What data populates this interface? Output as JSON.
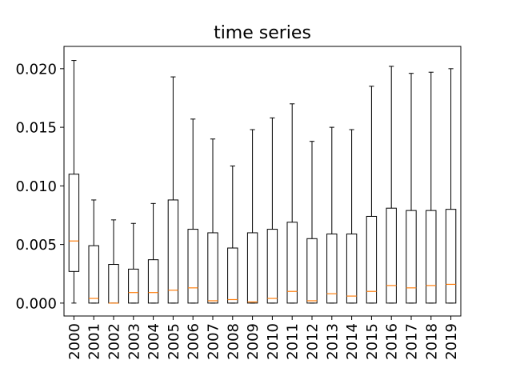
{
  "chart_data": {
    "type": "boxplot",
    "title": "time series",
    "xlabel": "",
    "ylabel": "",
    "ylim": [
      -0.0011,
      0.0219
    ],
    "yticks": [
      0.0,
      0.005,
      0.01,
      0.015,
      0.02
    ],
    "ytick_labels": [
      "0.000",
      "0.005",
      "0.010",
      "0.015",
      "0.020"
    ],
    "grid": false,
    "categories": [
      "2000",
      "2001",
      "2002",
      "2003",
      "2004",
      "2005",
      "2006",
      "2007",
      "2008",
      "2009",
      "2010",
      "2011",
      "2012",
      "2013",
      "2014",
      "2015",
      "2016",
      "2017",
      "2018",
      "2019"
    ],
    "boxes": [
      {
        "whislo": 0.0,
        "q1": 0.0027,
        "med": 0.0053,
        "q3": 0.011,
        "whishi": 0.0207
      },
      {
        "whislo": 0.0,
        "q1": 0.0,
        "med": 0.0004,
        "q3": 0.0049,
        "whishi": 0.0088
      },
      {
        "whislo": 0.0,
        "q1": 0.0,
        "med": 0.0,
        "q3": 0.0033,
        "whishi": 0.0071
      },
      {
        "whislo": 0.0,
        "q1": 0.0,
        "med": 0.0009,
        "q3": 0.0029,
        "whishi": 0.0068
      },
      {
        "whislo": 0.0,
        "q1": 0.0,
        "med": 0.0009,
        "q3": 0.0037,
        "whishi": 0.0085
      },
      {
        "whislo": 0.0,
        "q1": 0.0,
        "med": 0.0011,
        "q3": 0.0088,
        "whishi": 0.0193
      },
      {
        "whislo": 0.0,
        "q1": 0.0,
        "med": 0.0013,
        "q3": 0.0063,
        "whishi": 0.0157
      },
      {
        "whislo": 0.0,
        "q1": 0.0,
        "med": 0.0002,
        "q3": 0.006,
        "whishi": 0.014
      },
      {
        "whislo": 0.0,
        "q1": 0.0,
        "med": 0.0003,
        "q3": 0.0047,
        "whishi": 0.0117
      },
      {
        "whislo": 0.0,
        "q1": 0.0,
        "med": 0.0001,
        "q3": 0.006,
        "whishi": 0.0148
      },
      {
        "whislo": 0.0,
        "q1": 0.0,
        "med": 0.0004,
        "q3": 0.0063,
        "whishi": 0.0158
      },
      {
        "whislo": 0.0,
        "q1": 0.0,
        "med": 0.001,
        "q3": 0.0069,
        "whishi": 0.017
      },
      {
        "whislo": 0.0,
        "q1": 0.0,
        "med": 0.0002,
        "q3": 0.0055,
        "whishi": 0.0138
      },
      {
        "whislo": 0.0,
        "q1": 0.0,
        "med": 0.0008,
        "q3": 0.0059,
        "whishi": 0.015
      },
      {
        "whislo": 0.0,
        "q1": 0.0,
        "med": 0.0006,
        "q3": 0.0059,
        "whishi": 0.0148
      },
      {
        "whislo": 0.0,
        "q1": 0.0,
        "med": 0.001,
        "q3": 0.0074,
        "whishi": 0.0185
      },
      {
        "whislo": 0.0,
        "q1": 0.0,
        "med": 0.0015,
        "q3": 0.0081,
        "whishi": 0.0202
      },
      {
        "whislo": 0.0,
        "q1": 0.0,
        "med": 0.0013,
        "q3": 0.0079,
        "whishi": 0.0196
      },
      {
        "whislo": 0.0,
        "q1": 0.0,
        "med": 0.0015,
        "q3": 0.0079,
        "whishi": 0.0197
      },
      {
        "whislo": 0.0,
        "q1": 0.0,
        "med": 0.0016,
        "q3": 0.008,
        "whishi": 0.02
      }
    ],
    "colors": {
      "box": "#000000",
      "median": "#ff7f0e",
      "axes": "#000000",
      "background": "#ffffff"
    }
  }
}
